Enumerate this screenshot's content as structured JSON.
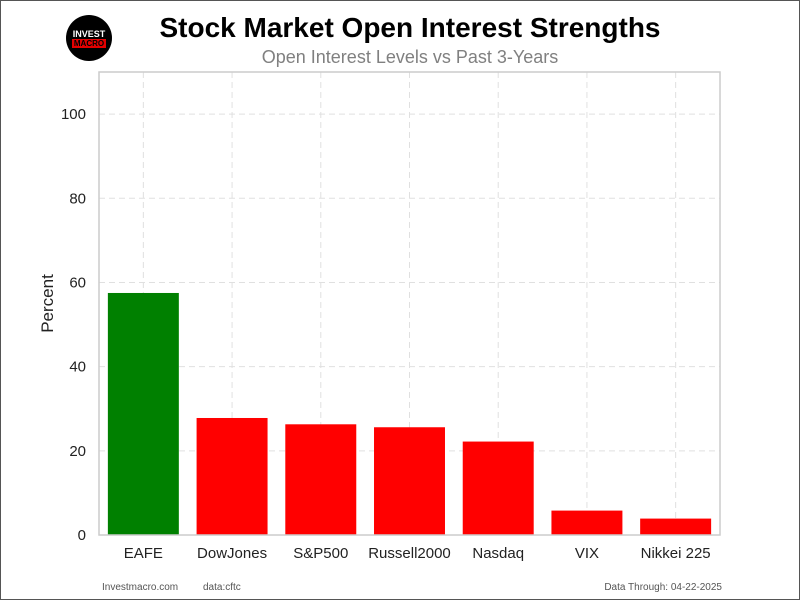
{
  "logo": {
    "line1": "INVEST",
    "line2": "MACRO"
  },
  "colors": {
    "positive": "#008000",
    "negative": "#ff0000",
    "grid": "#e0e0e0",
    "axes": "#cccccc"
  },
  "chart_data": {
    "type": "bar",
    "title": "Stock Market Open Interest Strengths",
    "subtitle": "Open Interest Levels vs Past 3-Years",
    "xlabel": "",
    "ylabel": "Percent",
    "categories": [
      "EAFE",
      "DowJones",
      "S&P500",
      "Russell2000",
      "Nasdaq",
      "VIX",
      "Nikkei 225"
    ],
    "values": [
      57.5,
      27.8,
      26.3,
      25.6,
      22.2,
      5.8,
      3.9
    ],
    "bar_colors": [
      "#008000",
      "#ff0000",
      "#ff0000",
      "#ff0000",
      "#ff0000",
      "#ff0000",
      "#ff0000"
    ],
    "ylim": [
      0,
      110
    ],
    "yticks": [
      0,
      20,
      40,
      60,
      80,
      100
    ],
    "grid": true,
    "legend": "none"
  },
  "footer": {
    "site": "Investmacro.com",
    "source": "data:cftc",
    "date": "Data Through: 04-22-2025"
  }
}
